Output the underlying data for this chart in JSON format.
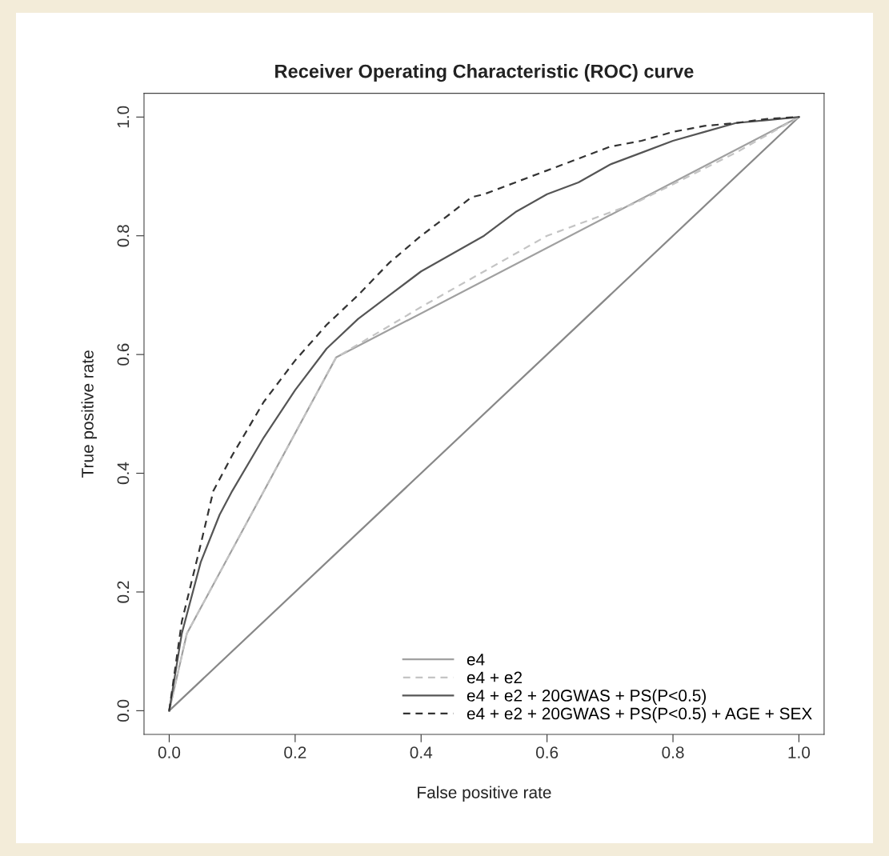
{
  "chart_data": {
    "type": "line",
    "title": "Receiver Operating Characteristic (ROC) curve",
    "xlabel": "False positive rate",
    "ylabel": "True positive rate",
    "xlim": [
      -0.04,
      1.04
    ],
    "ylim": [
      -0.04,
      1.04
    ],
    "xticks": [
      {
        "value": 0,
        "label": "0.0"
      },
      0.2,
      0.4,
      0.6,
      0.8,
      {
        "value": 1,
        "label": "1.0"
      }
    ],
    "yticks": [
      {
        "value": 0,
        "label": "0.0"
      },
      0.2,
      0.4,
      0.6,
      0.8,
      {
        "value": 1,
        "label": "1.0"
      }
    ],
    "grid": false,
    "legend": "bottom right",
    "series": [
      {
        "x": [
          0,
          1
        ],
        "values": [
          0,
          1
        ],
        "color": "#888888",
        "line_style": "solid"
      },
      {
        "name": "e4",
        "x": [
          0,
          0.028,
          0.265,
          1
        ],
        "values": [
          0,
          0.13,
          0.595,
          1
        ],
        "color": "#a0a0a0",
        "line_style": "solid"
      },
      {
        "name": "e4 + e2",
        "x": [
          0,
          0.028,
          0.265,
          0.4,
          0.6,
          0.74,
          0.9,
          1
        ],
        "values": [
          0,
          0.13,
          0.595,
          0.68,
          0.8,
          0.855,
          0.94,
          1
        ],
        "color": "#c4c4c4",
        "line_style": "dashed"
      },
      {
        "name": "e4 + e2 + 20GWAS + PS(P<0.5)",
        "x": [
          0,
          0.02,
          0.05,
          0.08,
          0.1,
          0.15,
          0.2,
          0.25,
          0.3,
          0.35,
          0.4,
          0.45,
          0.5,
          0.55,
          0.6,
          0.65,
          0.7,
          0.75,
          0.8,
          0.85,
          0.9,
          0.95,
          1
        ],
        "values": [
          0,
          0.13,
          0.25,
          0.33,
          0.37,
          0.46,
          0.54,
          0.61,
          0.66,
          0.7,
          0.74,
          0.77,
          0.8,
          0.84,
          0.87,
          0.89,
          0.92,
          0.94,
          0.96,
          0.975,
          0.99,
          0.995,
          1
        ],
        "color": "#555555",
        "line_style": "solid"
      },
      {
        "name": "e4 + e2 + 20GWAS + PS(P<0.5) + AGE + SEX",
        "x": [
          0,
          0.02,
          0.05,
          0.07,
          0.1,
          0.15,
          0.2,
          0.25,
          0.3,
          0.35,
          0.4,
          0.45,
          0.48,
          0.5,
          0.55,
          0.6,
          0.65,
          0.7,
          0.75,
          0.8,
          0.85,
          0.9,
          0.95,
          1
        ],
        "values": [
          0,
          0.15,
          0.28,
          0.37,
          0.43,
          0.52,
          0.59,
          0.65,
          0.7,
          0.755,
          0.8,
          0.84,
          0.865,
          0.87,
          0.89,
          0.91,
          0.93,
          0.95,
          0.96,
          0.975,
          0.985,
          0.99,
          0.997,
          1
        ],
        "color": "#333333",
        "line_style": "dashed"
      }
    ]
  }
}
